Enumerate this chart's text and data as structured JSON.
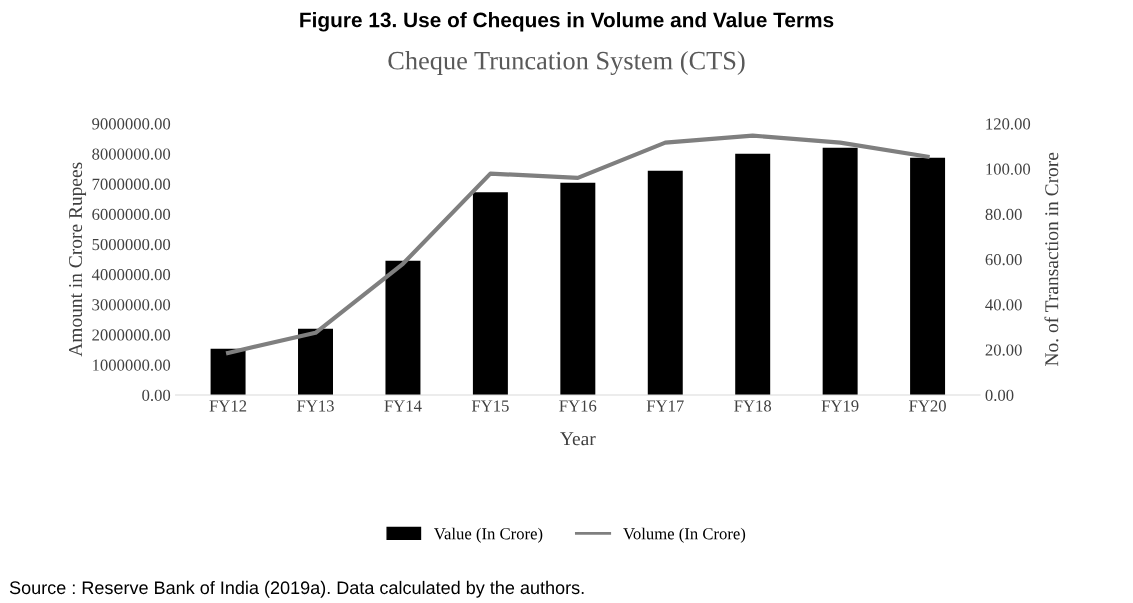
{
  "chart_data": {
    "type": "bar",
    "title": "Figure 13. Use of Cheques in Volume and Value Terms",
    "subtitle": "Cheque Truncation System (CTS)",
    "xlabel": "Year",
    "ylabel": "Amount in Crore Rupees",
    "y2label": "No. of Transaction in Crore",
    "categories": [
      "FY12",
      "FY13",
      "FY14",
      "FY15",
      "FY16",
      "FY17",
      "FY18",
      "FY19",
      "FY20"
    ],
    "series": [
      {
        "name": "Value (In Crore)",
        "color": "#000000",
        "values": [
          1530000,
          2200000,
          4450000,
          6720000,
          7040000,
          7440000,
          8000000,
          8200000,
          7870000
        ]
      },
      {
        "name": "Volume (In Crore)",
        "type": "line",
        "axis": "y2",
        "color": "#7f7f7f",
        "values": [
          18.6,
          27.5,
          58,
          97.9,
          96,
          111.6,
          114.7,
          111.6,
          105.4
        ]
      }
    ],
    "ylim": [
      0,
      9000000
    ],
    "yticks": [
      {
        "value": 0,
        "label": "0.00"
      },
      {
        "value": 1000000,
        "label": "1000000.00"
      },
      {
        "value": 2000000,
        "label": "2000000.00"
      },
      {
        "value": 3000000,
        "label": "3000000.00"
      },
      {
        "value": 4000000,
        "label": "4000000.00"
      },
      {
        "value": 5000000,
        "label": "5000000.00"
      },
      {
        "value": 6000000,
        "label": "6000000.00"
      },
      {
        "value": 7000000,
        "label": "7000000.00"
      },
      {
        "value": 8000000,
        "label": "8000000.00"
      },
      {
        "value": 9000000,
        "label": "9000000.00"
      }
    ],
    "y2lim": [
      0,
      120
    ],
    "y2ticks": [
      {
        "value": 0,
        "label": "0.00"
      },
      {
        "value": 20,
        "label": "20.00"
      },
      {
        "value": 40,
        "label": "40.00"
      },
      {
        "value": 60,
        "label": "60.00"
      },
      {
        "value": 80,
        "label": "80.00"
      },
      {
        "value": 100,
        "label": "100.00"
      },
      {
        "value": 120,
        "label": "120.00"
      }
    ],
    "legend": "bottom",
    "grid": false,
    "annotations": [
      "Source : Reserve Bank of India (2019a). Data calculated by the authors."
    ]
  }
}
